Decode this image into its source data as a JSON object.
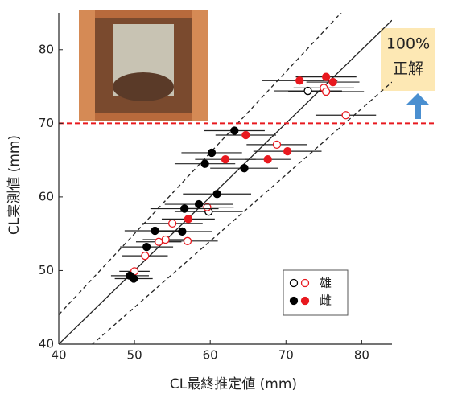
{
  "chart_data": {
    "type": "scatter",
    "x_label": "CL最終推定値 (mm)",
    "y_label": "CL実測値 (mm)",
    "xlim": [
      40,
      84
    ],
    "ylim": [
      40,
      85
    ],
    "xticks": [
      40,
      50,
      60,
      70,
      80
    ],
    "yticks": [
      40,
      50,
      60,
      70,
      80
    ],
    "reference_lines": [
      {
        "slope": 1,
        "style": "solid"
      },
      {
        "slope": 1.1,
        "style": "dashed"
      },
      {
        "slope": 0.9,
        "style": "dashed"
      }
    ],
    "threshold": {
      "y": 70,
      "color": "#e8191f"
    },
    "annotation": [
      "100%",
      "正解"
    ],
    "series": [
      {
        "name": "雄",
        "fill": "none",
        "x": [
          72.9,
          59.8,
          75.0,
          75.3,
          77.9,
          68.8,
          59.6,
          55.0,
          57.0,
          54.1,
          53.2,
          51.4,
          50.0
        ],
        "y": [
          74.4,
          58.0,
          74.8,
          74.3,
          71.1,
          67.1,
          58.6,
          56.4,
          54.0,
          54.2,
          53.9,
          52.0,
          49.9
        ],
        "xerr": [
          4.5,
          4.5,
          4.0,
          5.0,
          4.0,
          4.0,
          3.5,
          4.0,
          4.0,
          3.0,
          3.0,
          3.0,
          2.0
        ],
        "colors": [
          "#000000",
          "#000000",
          "#e8191f",
          "#e8191f",
          "#e8191f",
          "#e8191f",
          "#e8191f",
          "#e8191f",
          "#e8191f",
          "#e8191f",
          "#e8191f",
          "#e8191f",
          "#e8191f"
        ]
      },
      {
        "name": "雌",
        "fill": "solid",
        "x": [
          63.2,
          60.2,
          59.3,
          64.5,
          60.9,
          58.5,
          56.6,
          52.7,
          56.3,
          51.6,
          49.4,
          49.9,
          71.8,
          75.3,
          76.2,
          64.7,
          70.2,
          67.6,
          62.0,
          57.1
        ],
        "y": [
          69.0,
          66.0,
          64.5,
          63.9,
          60.4,
          59.0,
          58.4,
          55.4,
          55.3,
          53.2,
          49.3,
          48.9,
          75.8,
          76.3,
          75.6,
          68.4,
          66.2,
          65.1,
          65.1,
          57.0
        ],
        "xerr": [
          4.0,
          4.0,
          4.0,
          4.5,
          4.5,
          4.5,
          4.5,
          4.0,
          4.0,
          3.5,
          2.5,
          2.5,
          5.0,
          4.0,
          3.5,
          4.0,
          4.5,
          3.0,
          4.0,
          3.5
        ],
        "colors": [
          "#000000",
          "#000000",
          "#000000",
          "#000000",
          "#000000",
          "#000000",
          "#000000",
          "#000000",
          "#000000",
          "#000000",
          "#000000",
          "#000000",
          "#e8191f",
          "#e8191f",
          "#e8191f",
          "#e8191f",
          "#e8191f",
          "#e8191f",
          "#e8191f",
          "#e8191f"
        ]
      }
    ]
  }
}
